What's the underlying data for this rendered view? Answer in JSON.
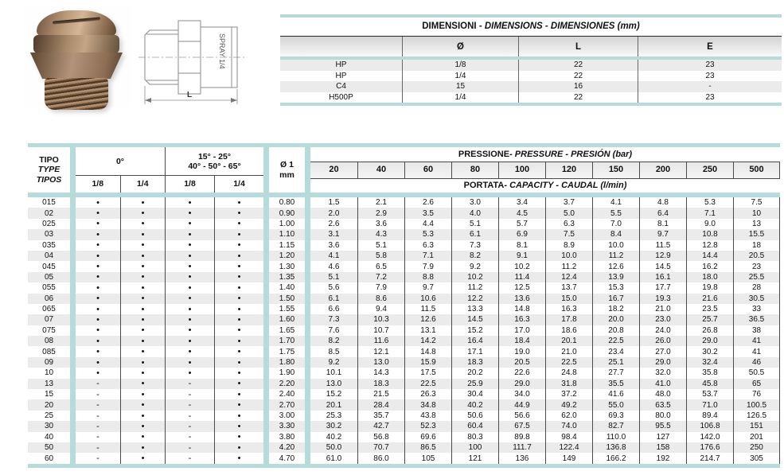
{
  "colors": {
    "accent_teal": "#b7dbda",
    "stripe_gray": "#ebebeb",
    "header_gray_top": "#d4d4d4",
    "line_dark": "#4a4a4a"
  },
  "drawing": {
    "stamp_text": "SPRAY 1/4",
    "dim_label": "L"
  },
  "dimensions_table": {
    "title_main": "DIMENSIONI",
    "title_rest": " - DIMENSIONS - DIMENSIONES (mm)",
    "columns": [
      "",
      "Ø",
      "L",
      "E"
    ],
    "rows": [
      [
        "HP",
        "1/8",
        "22",
        "23"
      ],
      [
        "HP",
        "1/4",
        "22",
        "23"
      ],
      [
        "C4",
        "15",
        "16",
        "-"
      ],
      [
        "H500P",
        "1/4",
        "22",
        "23"
      ]
    ]
  },
  "main_table": {
    "type_lines": [
      "TIPO",
      "TYPE",
      "TIPOS"
    ],
    "group1_title": "0°",
    "group2_title_line1": "15° - 25°",
    "group2_title_line2": "40° - 50° - 65°",
    "subcols": [
      "1/8",
      "1/4",
      "1/8",
      "1/4"
    ],
    "dia_line1": "Ø 1",
    "dia_line2": "mm",
    "pressure_title_main": "PRESSIONE",
    "pressure_title_rest": " - PRESSURE - PRESIÓN (bar)",
    "pressures": [
      "20",
      "40",
      "60",
      "80",
      "100",
      "120",
      "150",
      "200",
      "250",
      "500"
    ],
    "capacity_title_main": "PORTATA",
    "capacity_title_rest": " - CAPACITY - CAUDAL (l/min)",
    "rows": [
      {
        "tipo": "015",
        "marks": [
          "•",
          "•",
          "•",
          "•"
        ],
        "dia": "0.80",
        "flow": [
          "1.5",
          "2.1",
          "2.6",
          "3.0",
          "3.4",
          "3.7",
          "4.1",
          "4.8",
          "5.3",
          "7.5"
        ]
      },
      {
        "tipo": "02",
        "marks": [
          "•",
          "•",
          "•",
          "•"
        ],
        "dia": "0.90",
        "flow": [
          "2.0",
          "2.9",
          "3.5",
          "4.0",
          "4.5",
          "5.0",
          "5.5",
          "6.4",
          "7.1",
          "10"
        ]
      },
      {
        "tipo": "025",
        "marks": [
          "•",
          "•",
          "•",
          "•"
        ],
        "dia": "1.00",
        "flow": [
          "2.6",
          "3.6",
          "4.4",
          "5.1",
          "5.7",
          "6.3",
          "7.0",
          "8.1",
          "9.0",
          "13"
        ]
      },
      {
        "tipo": "03",
        "marks": [
          "•",
          "•",
          "•",
          "•"
        ],
        "dia": "1.10",
        "flow": [
          "3.1",
          "4.3",
          "5.3",
          "6.1",
          "6.9",
          "7.5",
          "8.4",
          "9.7",
          "10.8",
          "15.5"
        ]
      },
      {
        "tipo": "035",
        "marks": [
          "•",
          "•",
          "•",
          "•"
        ],
        "dia": "1.15",
        "flow": [
          "3.6",
          "5.1",
          "6.3",
          "7.3",
          "8.1",
          "8.9",
          "10.0",
          "11.5",
          "12.8",
          "18"
        ]
      },
      {
        "tipo": "04",
        "marks": [
          "•",
          "•",
          "•",
          "•"
        ],
        "dia": "1.20",
        "flow": [
          "4.1",
          "5.8",
          "7.1",
          "8.2",
          "9.1",
          "10.0",
          "11.2",
          "12.9",
          "14.4",
          "20.5"
        ]
      },
      {
        "tipo": "045",
        "marks": [
          "•",
          "•",
          "•",
          "•"
        ],
        "dia": "1.30",
        "flow": [
          "4.6",
          "6.5",
          "7.9",
          "9.2",
          "10.2",
          "11.2",
          "12.6",
          "14.5",
          "16.2",
          "23"
        ]
      },
      {
        "tipo": "05",
        "marks": [
          "•",
          "•",
          "•",
          "•"
        ],
        "dia": "1.35",
        "flow": [
          "5.1",
          "7.2",
          "8.8",
          "10.2",
          "11.4",
          "12.4",
          "13.9",
          "16.1",
          "18.0",
          "25.5"
        ]
      },
      {
        "tipo": "055",
        "marks": [
          "•",
          "•",
          "•",
          "•"
        ],
        "dia": "1.40",
        "flow": [
          "5.6",
          "7.9",
          "9.7",
          "11.2",
          "12.5",
          "13.7",
          "15.3",
          "17.7",
          "19.8",
          "28"
        ]
      },
      {
        "tipo": "06",
        "marks": [
          "•",
          "•",
          "•",
          "•"
        ],
        "dia": "1.50",
        "flow": [
          "6.1",
          "8.6",
          "10.6",
          "12.2",
          "13.6",
          "15.0",
          "16.7",
          "19.3",
          "21.6",
          "30.5"
        ]
      },
      {
        "tipo": "065",
        "marks": [
          "•",
          "•",
          "•",
          "•"
        ],
        "dia": "1.55",
        "flow": [
          "6.6",
          "9.4",
          "11.5",
          "13.3",
          "14.8",
          "16.3",
          "18.2",
          "21.0",
          "23.5",
          "33"
        ]
      },
      {
        "tipo": "07",
        "marks": [
          "•",
          "•",
          "•",
          "•"
        ],
        "dia": "1.60",
        "flow": [
          "7.3",
          "10.3",
          "12.6",
          "14.5",
          "16.3",
          "17.8",
          "20.0",
          "23.0",
          "25.7",
          "36.5"
        ]
      },
      {
        "tipo": "075",
        "marks": [
          "•",
          "•",
          "•",
          "•"
        ],
        "dia": "1.65",
        "flow": [
          "7.6",
          "10.7",
          "13.1",
          "15.2",
          "17.0",
          "18.6",
          "20.8",
          "24.0",
          "26.8",
          "38"
        ]
      },
      {
        "tipo": "08",
        "marks": [
          "•",
          "•",
          "•",
          "•"
        ],
        "dia": "1.70",
        "flow": [
          "8.2",
          "11.6",
          "14.2",
          "16.4",
          "18.4",
          "20.1",
          "22.5",
          "26.0",
          "29.0",
          "41"
        ]
      },
      {
        "tipo": "085",
        "marks": [
          "•",
          "•",
          "•",
          "•"
        ],
        "dia": "1.75",
        "flow": [
          "8.5",
          "12.1",
          "14.8",
          "17.1",
          "19.0",
          "21.0",
          "23.4",
          "27.0",
          "30.2",
          "41"
        ]
      },
      {
        "tipo": "09",
        "marks": [
          "•",
          "•",
          "•",
          "•"
        ],
        "dia": "1.80",
        "flow": [
          "9.2",
          "13.0",
          "15.9",
          "18.3",
          "20.5",
          "22.5",
          "25.1",
          "29.0",
          "32.4",
          "46"
        ]
      },
      {
        "tipo": "10",
        "marks": [
          "•",
          "•",
          "•",
          "•"
        ],
        "dia": "1.90",
        "flow": [
          "10.1",
          "14.3",
          "17.5",
          "20.2",
          "22.6",
          "24.8",
          "27.7",
          "32.0",
          "35.8",
          "50.5"
        ]
      },
      {
        "tipo": "13",
        "marks": [
          "-",
          "•",
          "-",
          "•"
        ],
        "dia": "2.20",
        "flow": [
          "13.0",
          "18.3",
          "22.5",
          "25.9",
          "29.0",
          "31.8",
          "35.5",
          "41.0",
          "45.8",
          "65"
        ]
      },
      {
        "tipo": "15",
        "marks": [
          "-",
          "•",
          "-",
          "•"
        ],
        "dia": "2.40",
        "flow": [
          "15.2",
          "21.5",
          "26.3",
          "30.4",
          "34.0",
          "37.2",
          "41.6",
          "48.0",
          "53.7",
          "76"
        ]
      },
      {
        "tipo": "20",
        "marks": [
          "-",
          "•",
          "-",
          "•"
        ],
        "dia": "2.70",
        "flow": [
          "20.1",
          "28.4",
          "34.8",
          "40.2",
          "44.9",
          "49.2",
          "55.0",
          "63.5",
          "71.0",
          "100.5"
        ]
      },
      {
        "tipo": "25",
        "marks": [
          "-",
          "•",
          "-",
          "•"
        ],
        "dia": "3.00",
        "flow": [
          "25.3",
          "35.7",
          "43.8",
          "50.6",
          "56.6",
          "62.0",
          "69.3",
          "80.0",
          "89.4",
          "126.5"
        ]
      },
      {
        "tipo": "30",
        "marks": [
          "-",
          "•",
          "-",
          "•"
        ],
        "dia": "3.30",
        "flow": [
          "30.2",
          "42.7",
          "52.3",
          "60.4",
          "67.5",
          "74.0",
          "82.7",
          "95.5",
          "106.8",
          "151"
        ]
      },
      {
        "tipo": "40",
        "marks": [
          "-",
          "•",
          "-",
          "•"
        ],
        "dia": "3.80",
        "flow": [
          "40.2",
          "56.8",
          "69.6",
          "80.3",
          "89.8",
          "98.4",
          "110.0",
          "127",
          "142.0",
          "201"
        ]
      },
      {
        "tipo": "50",
        "marks": [
          "-",
          "•",
          "-",
          "•"
        ],
        "dia": "4.20",
        "flow": [
          "50.0",
          "70.7",
          "86.5",
          "100",
          "111.7",
          "122.4",
          "136.8",
          "158",
          "176.6",
          "250"
        ]
      },
      {
        "tipo": "60",
        "marks": [
          "-",
          "•",
          "-",
          "•"
        ],
        "dia": "4.70",
        "flow": [
          "61.0",
          "86.0",
          "105",
          "121",
          "136",
          "149",
          "166.2",
          "192",
          "214.7",
          "305"
        ]
      }
    ]
  }
}
